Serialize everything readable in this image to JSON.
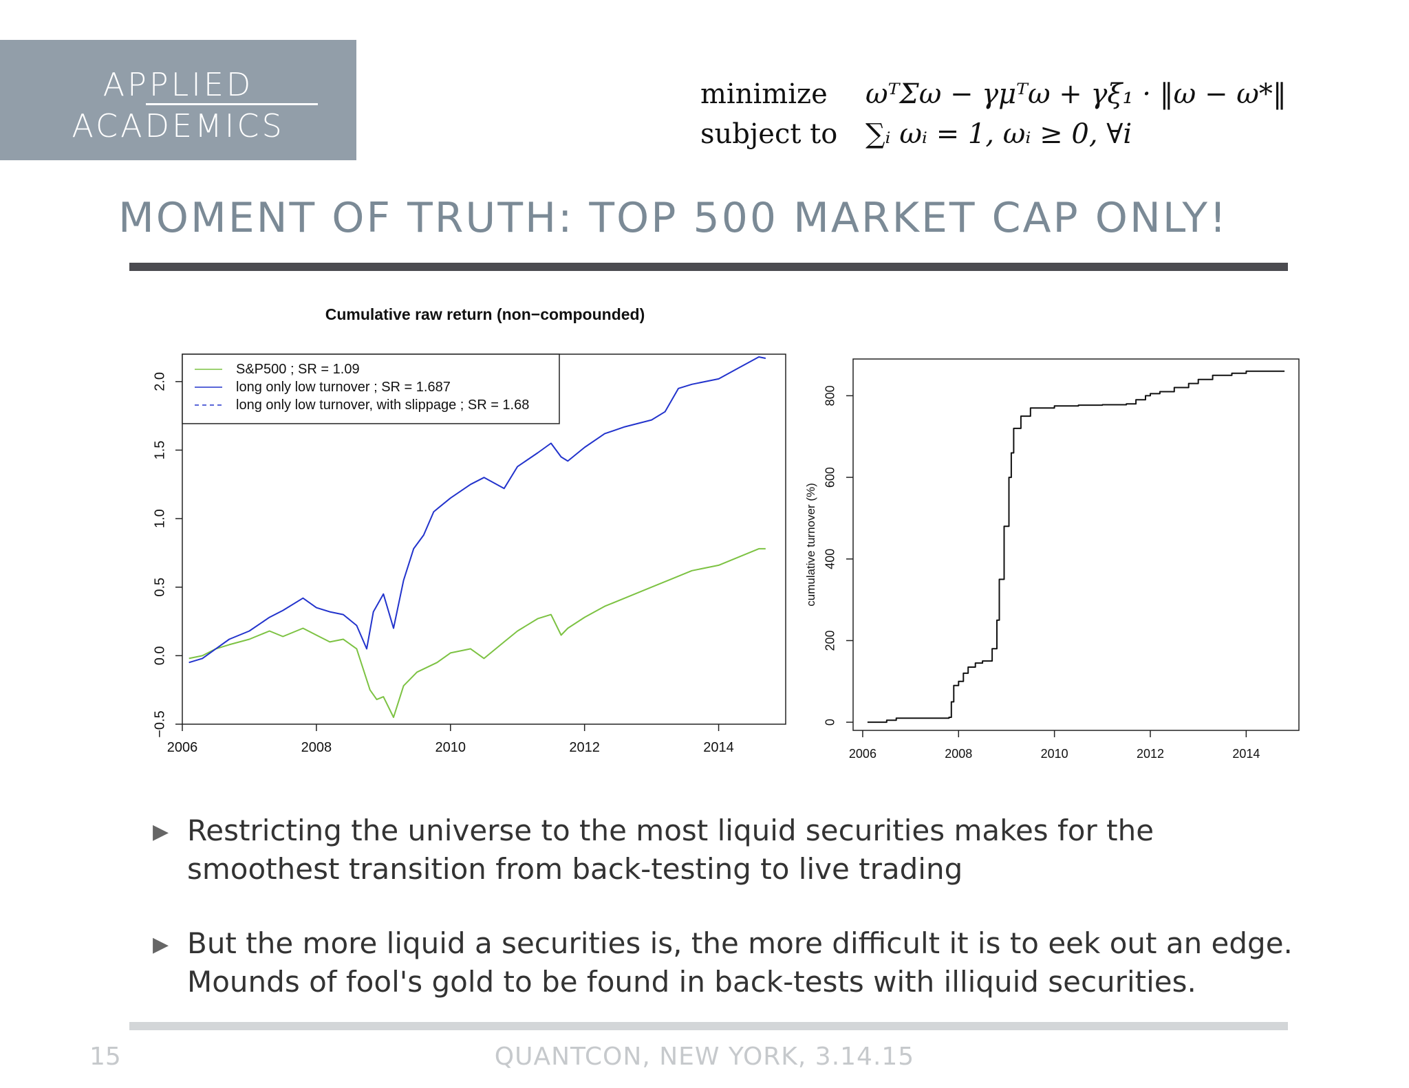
{
  "logo": {
    "line1": "APPLIED",
    "line2": "ACADEMICS"
  },
  "formula": {
    "row1_label": "minimize",
    "row1_expr": "ωᵀΣω − γμᵀω + γξ₁ · ‖ω − ω*‖",
    "row2_label": "subject to",
    "row2_expr": "∑ᵢ ωᵢ = 1,  ωᵢ ≥ 0, ∀i"
  },
  "slide": {
    "title": "MOMENT OF TRUTH: TOP 500 MARKET CAP ONLY!",
    "bullets": [
      "Restricting the universe to the most liquid securities makes for the smoothest transition from back-testing to live trading",
      "But the more liquid a securities is, the more difficult it is to eek out an edge. Mounds of fool's gold to be found in back-tests with illiquid securities."
    ],
    "page_number": "15",
    "footer": "QUANTCON, NEW YORK, 3.14.15"
  },
  "chart_data": [
    {
      "type": "line",
      "title": "Cumulative raw return (non−compounded)",
      "xlabel": "",
      "ylabel": "",
      "xlim": [
        2006,
        2015
      ],
      "ylim": [
        -0.5,
        2.2
      ],
      "x_ticks": [
        2006,
        2008,
        2010,
        2012,
        2014
      ],
      "y_ticks": [
        -0.5,
        0.0,
        0.5,
        1.0,
        1.5,
        2.0
      ],
      "x_tick_labels": [
        "2006",
        "2008",
        "2010",
        "2012",
        "2014"
      ],
      "y_tick_labels": [
        "−0.5",
        "0.0",
        "0.5",
        "1.0",
        "1.5",
        "2.0"
      ],
      "legend_position": "top-left",
      "series": [
        {
          "name": "S&P500 ; SR = 1.09",
          "color": "#7cc242",
          "dash": "solid",
          "x": [
            2006.1,
            2006.3,
            2006.5,
            2006.7,
            2007.0,
            2007.3,
            2007.5,
            2007.8,
            2008.0,
            2008.2,
            2008.4,
            2008.6,
            2008.7,
            2008.8,
            2008.9,
            2009.0,
            2009.15,
            2009.3,
            2009.5,
            2009.8,
            2010.0,
            2010.3,
            2010.5,
            2010.8,
            2011.0,
            2011.3,
            2011.5,
            2011.65,
            2011.75,
            2012.0,
            2012.3,
            2012.6,
            2013.0,
            2013.3,
            2013.6,
            2014.0,
            2014.3,
            2014.6,
            2014.7
          ],
          "y": [
            -0.02,
            0.0,
            0.05,
            0.08,
            0.12,
            0.18,
            0.14,
            0.2,
            0.15,
            0.1,
            0.12,
            0.05,
            -0.1,
            -0.25,
            -0.32,
            -0.3,
            -0.45,
            -0.22,
            -0.12,
            -0.05,
            0.02,
            0.05,
            -0.02,
            0.1,
            0.18,
            0.27,
            0.3,
            0.15,
            0.2,
            0.28,
            0.36,
            0.42,
            0.5,
            0.56,
            0.62,
            0.66,
            0.72,
            0.78,
            0.78
          ]
        },
        {
          "name": "long only low turnover ; SR = 1.687",
          "color": "#2233cc",
          "dash": "solid",
          "x": [
            2006.1,
            2006.3,
            2006.5,
            2006.7,
            2007.0,
            2007.3,
            2007.5,
            2007.8,
            2008.0,
            2008.2,
            2008.4,
            2008.6,
            2008.75,
            2008.85,
            2009.0,
            2009.15,
            2009.3,
            2009.45,
            2009.6,
            2009.75,
            2010.0,
            2010.3,
            2010.5,
            2010.8,
            2011.0,
            2011.3,
            2011.5,
            2011.65,
            2011.75,
            2012.0,
            2012.3,
            2012.6,
            2013.0,
            2013.2,
            2013.4,
            2013.6,
            2014.0,
            2014.3,
            2014.6,
            2014.7
          ],
          "y": [
            -0.05,
            -0.02,
            0.05,
            0.12,
            0.18,
            0.28,
            0.33,
            0.42,
            0.35,
            0.32,
            0.3,
            0.22,
            0.05,
            0.32,
            0.45,
            0.2,
            0.55,
            0.78,
            0.88,
            1.05,
            1.15,
            1.25,
            1.3,
            1.22,
            1.38,
            1.48,
            1.55,
            1.45,
            1.42,
            1.52,
            1.62,
            1.67,
            1.72,
            1.78,
            1.95,
            1.98,
            2.02,
            2.1,
            2.18,
            2.17
          ]
        },
        {
          "name": "long only low turnover, with slippage ; SR = 1.68",
          "color": "#2233cc",
          "dash": "dashed",
          "x": [
            2006.1,
            2006.3,
            2006.5,
            2006.7,
            2007.0,
            2007.3,
            2007.5,
            2007.8,
            2008.0,
            2008.2,
            2008.4,
            2008.6,
            2008.75,
            2008.85,
            2009.0,
            2009.15,
            2009.3,
            2009.45,
            2009.6,
            2009.75,
            2010.0,
            2010.3,
            2010.5,
            2010.8,
            2011.0,
            2011.3,
            2011.5,
            2011.65,
            2011.75,
            2012.0,
            2012.3,
            2012.6,
            2013.0,
            2013.2,
            2013.4,
            2013.6,
            2014.0,
            2014.3,
            2014.6,
            2014.7
          ],
          "y": [
            -0.05,
            -0.02,
            0.05,
            0.12,
            0.18,
            0.28,
            0.33,
            0.42,
            0.35,
            0.32,
            0.3,
            0.22,
            0.05,
            0.32,
            0.45,
            0.2,
            0.55,
            0.78,
            0.88,
            1.05,
            1.15,
            1.25,
            1.3,
            1.22,
            1.38,
            1.48,
            1.55,
            1.45,
            1.42,
            1.52,
            1.62,
            1.67,
            1.72,
            1.78,
            1.95,
            1.98,
            2.02,
            2.1,
            2.18,
            2.17
          ]
        }
      ]
    },
    {
      "type": "line",
      "title": "",
      "xlabel": "",
      "ylabel": "cumulative turnover (%)",
      "xlim": [
        2005.8,
        2015.1
      ],
      "ylim": [
        -20,
        890
      ],
      "x_ticks": [
        2006,
        2008,
        2010,
        2012,
        2014
      ],
      "y_ticks": [
        0,
        200,
        400,
        600,
        800
      ],
      "x_tick_labels": [
        "2006",
        "2008",
        "2010",
        "2012",
        "2014"
      ],
      "y_tick_labels": [
        "0",
        "200",
        "400",
        "600",
        "800"
      ],
      "series": [
        {
          "color": "#111111",
          "dash": "step",
          "x": [
            2006.1,
            2006.5,
            2006.7,
            2007.8,
            2007.85,
            2007.9,
            2008.0,
            2008.1,
            2008.2,
            2008.35,
            2008.5,
            2008.7,
            2008.8,
            2008.85,
            2008.95,
            2009.05,
            2009.1,
            2009.15,
            2009.3,
            2009.5,
            2010.0,
            2010.5,
            2011.0,
            2011.5,
            2011.7,
            2011.9,
            2012.0,
            2012.2,
            2012.5,
            2012.8,
            2013.0,
            2013.3,
            2013.7,
            2014.0,
            2014.5,
            2014.8
          ],
          "y": [
            0,
            5,
            10,
            12,
            50,
            90,
            100,
            120,
            135,
            145,
            150,
            180,
            250,
            350,
            480,
            600,
            660,
            720,
            750,
            770,
            775,
            777,
            778,
            780,
            790,
            800,
            805,
            810,
            820,
            830,
            840,
            850,
            855,
            860,
            860,
            860
          ]
        }
      ]
    }
  ]
}
